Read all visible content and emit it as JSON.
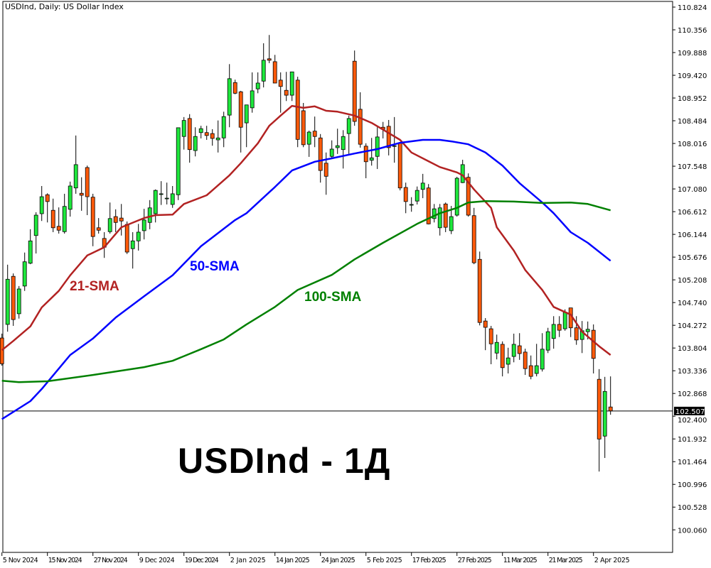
{
  "window": {
    "title": "USDInd, Daily:  US Dollar Index"
  },
  "overlay_text": "USDInd - 1Д",
  "chart_data": {
    "type": "candlestick",
    "title": "USDInd, Daily:  US Dollar Index",
    "ylim": [
      99.9,
      110.95
    ],
    "y_ticks": [
      "110.824",
      "110.356",
      "109.888",
      "109.420",
      "108.952",
      "108.484",
      "108.016",
      "107.548",
      "107.080",
      "106.612",
      "106.144",
      "105.676",
      "105.208",
      "104.740",
      "104.272",
      "103.804",
      "103.336",
      "102.868",
      "102.400",
      "101.932",
      "101.464",
      "100.996",
      "100.528",
      "100.060"
    ],
    "x_ticks": [
      {
        "bar": 0,
        "label": "5 Nov 2024"
      },
      {
        "bar": 8,
        "label": "15 Nov 2024"
      },
      {
        "bar": 16,
        "label": "27 Nov 2024"
      },
      {
        "bar": 24,
        "label": "9 Dec 2024"
      },
      {
        "bar": 32,
        "label": "19 Dec 2024"
      },
      {
        "bar": 40,
        "label": "2 Jan 2025"
      },
      {
        "bar": 48,
        "label": "14 Jan 2025"
      },
      {
        "bar": 56,
        "label": "24 Jan 2025"
      },
      {
        "bar": 64,
        "label": "5 Feb 2025"
      },
      {
        "bar": 72,
        "label": "17 Feb 2025"
      },
      {
        "bar": 80,
        "label": "27 Feb 2025"
      },
      {
        "bar": 88,
        "label": "11 Mar 2025"
      },
      {
        "bar": 96,
        "label": "21 Mar 2025"
      },
      {
        "bar": 104,
        "label": "2 Apr 2025"
      }
    ],
    "current_price": "102.507",
    "colors": {
      "bull": "#1ee83c",
      "bear": "#ff5a0a",
      "sma21": "#b22222",
      "sma50": "#0000ff",
      "sma100": "#008000"
    },
    "ohlc": [
      [
        104.01,
        104.1,
        103.44,
        103.48
      ],
      [
        104.29,
        105.52,
        104.14,
        105.22
      ],
      [
        105.28,
        105.34,
        104.26,
        104.39
      ],
      [
        104.51,
        105.08,
        104.41,
        105.02
      ],
      [
        105.08,
        105.77,
        104.98,
        105.58
      ],
      [
        105.55,
        106.25,
        105.53,
        106.01
      ],
      [
        106.12,
        106.6,
        105.75,
        106.54
      ],
      [
        106.57,
        107.14,
        106.42,
        106.92
      ],
      [
        106.96,
        106.99,
        106.39,
        106.82
      ],
      [
        106.64,
        106.88,
        106.19,
        106.28
      ],
      [
        106.31,
        106.7,
        106.16,
        106.23
      ],
      [
        106.2,
        106.98,
        106.16,
        106.72
      ],
      [
        106.66,
        107.23,
        106.51,
        107.14
      ],
      [
        107.1,
        108.18,
        106.98,
        107.58
      ],
      [
        106.99,
        107.32,
        106.63,
        106.95
      ],
      [
        107.52,
        107.56,
        106.54,
        106.92
      ],
      [
        106.91,
        106.98,
        105.9,
        106.1
      ],
      [
        106.28,
        106.48,
        106.16,
        106.23
      ],
      [
        106.06,
        106.19,
        105.66,
        105.88
      ],
      [
        106.2,
        106.8,
        106.16,
        106.47
      ],
      [
        106.51,
        106.66,
        106.19,
        106.39
      ],
      [
        106.48,
        106.77,
        106.12,
        106.42
      ],
      [
        106.35,
        106.41,
        105.74,
        105.78
      ],
      [
        105.85,
        106.19,
        105.44,
        106.01
      ],
      [
        106.01,
        106.36,
        105.81,
        106.19
      ],
      [
        106.22,
        106.67,
        106.04,
        106.44
      ],
      [
        106.39,
        106.85,
        106.25,
        106.69
      ],
      [
        106.57,
        107.07,
        106.39,
        107.05
      ],
      [
        106.98,
        107.24,
        106.75,
        106.98
      ],
      [
        106.89,
        107.21,
        106.76,
        106.89
      ],
      [
        106.76,
        107.14,
        106.69,
        106.98
      ],
      [
        106.96,
        108.34,
        106.85,
        108.34
      ],
      [
        108.16,
        108.56,
        107.89,
        108.49
      ],
      [
        108.53,
        108.62,
        107.62,
        107.89
      ],
      [
        107.87,
        108.35,
        107.75,
        108.16
      ],
      [
        108.24,
        108.38,
        108.12,
        108.32
      ],
      [
        108.24,
        108.38,
        108.09,
        108.18
      ],
      [
        108.22,
        108.31,
        107.97,
        108.12
      ],
      [
        108.09,
        108.49,
        107.83,
        108.13
      ],
      [
        108.13,
        108.67,
        107.94,
        108.57
      ],
      [
        108.6,
        109.65,
        108.35,
        109.35
      ],
      [
        109.27,
        109.33,
        109.03,
        109.05
      ],
      [
        109.08,
        109.1,
        107.83,
        108.35
      ],
      [
        108.44,
        108.81,
        107.94,
        108.81
      ],
      [
        108.75,
        109.48,
        108.65,
        109.1
      ],
      [
        109.14,
        109.48,
        109.05,
        109.26
      ],
      [
        109.3,
        110.08,
        109.17,
        109.73
      ],
      [
        109.76,
        110.25,
        109.67,
        109.73
      ],
      [
        109.7,
        109.84,
        109.26,
        109.26
      ],
      [
        109.32,
        109.48,
        108.65,
        109.19
      ],
      [
        109.11,
        109.49,
        108.89,
        109.01
      ],
      [
        109.01,
        109.49,
        108.89,
        109.49
      ],
      [
        109.32,
        109.39,
        107.94,
        108.1
      ],
      [
        108.69,
        108.85,
        107.94,
        107.99
      ],
      [
        108.0,
        108.28,
        107.74,
        108.25
      ],
      [
        108.27,
        108.57,
        107.94,
        108.16
      ],
      [
        108.13,
        108.21,
        107.21,
        107.46
      ],
      [
        107.61,
        107.83,
        106.96,
        107.34
      ],
      [
        107.75,
        108.08,
        107.71,
        107.9
      ],
      [
        107.93,
        108.32,
        107.8,
        107.97
      ],
      [
        107.89,
        108.29,
        107.5,
        108.16
      ],
      [
        108.22,
        108.59,
        107.8,
        108.53
      ],
      [
        109.71,
        109.93,
        108.38,
        108.47
      ],
      [
        108.72,
        109.07,
        107.93,
        108.0
      ],
      [
        107.96,
        108.02,
        107.3,
        107.64
      ],
      [
        107.67,
        108.13,
        107.56,
        107.72
      ],
      [
        107.75,
        108.35,
        107.49,
        108.15
      ],
      [
        108.35,
        108.46,
        108.12,
        108.31
      ],
      [
        108.37,
        108.5,
        107.77,
        107.93
      ],
      [
        107.97,
        108.56,
        107.62,
        107.97
      ],
      [
        108.03,
        108.03,
        107.05,
        107.1
      ],
      [
        107.11,
        107.21,
        106.58,
        106.82
      ],
      [
        106.76,
        106.91,
        106.61,
        106.76
      ],
      [
        106.83,
        107.13,
        106.76,
        107.05
      ],
      [
        107.07,
        107.39,
        106.89,
        107.2
      ],
      [
        107.1,
        107.18,
        106.35,
        106.36
      ],
      [
        106.47,
        106.77,
        106.39,
        106.67
      ],
      [
        106.28,
        106.77,
        106.12,
        106.69
      ],
      [
        106.77,
        106.8,
        106.19,
        106.29
      ],
      [
        106.22,
        106.73,
        106.15,
        106.51
      ],
      [
        106.54,
        107.33,
        106.51,
        107.3
      ],
      [
        107.21,
        107.68,
        107.2,
        107.58
      ],
      [
        107.32,
        107.4,
        106.51,
        106.54
      ],
      [
        106.53,
        106.69,
        105.53,
        105.56
      ],
      [
        105.63,
        105.79,
        104.27,
        104.33
      ],
      [
        104.36,
        104.42,
        103.76,
        104.23
      ],
      [
        104.2,
        104.26,
        103.47,
        103.89
      ],
      [
        103.7,
        104.08,
        103.57,
        103.92
      ],
      [
        103.88,
        103.94,
        103.22,
        103.4
      ],
      [
        103.47,
        103.81,
        103.28,
        103.6
      ],
      [
        103.63,
        104.1,
        103.51,
        103.88
      ],
      [
        103.85,
        104.11,
        103.56,
        103.69
      ],
      [
        103.72,
        103.79,
        103.25,
        103.38
      ],
      [
        103.44,
        103.65,
        103.16,
        103.22
      ],
      [
        103.28,
        103.89,
        103.22,
        103.44
      ],
      [
        103.37,
        104.11,
        103.32,
        103.78
      ],
      [
        103.76,
        104.22,
        103.7,
        104.14
      ],
      [
        104.0,
        104.46,
        103.79,
        104.29
      ],
      [
        104.29,
        104.46,
        104.03,
        104.17
      ],
      [
        104.2,
        104.6,
        104.16,
        104.54
      ],
      [
        104.63,
        104.63,
        104.03,
        104.22
      ],
      [
        104.22,
        104.46,
        103.87,
        103.97
      ],
      [
        103.98,
        104.36,
        103.7,
        104.16
      ],
      [
        104.14,
        104.35,
        103.98,
        104.19
      ],
      [
        104.17,
        104.29,
        103.28,
        103.59
      ],
      [
        103.16,
        103.37,
        101.26,
        101.93
      ],
      [
        101.99,
        103.21,
        101.54,
        102.91
      ],
      [
        102.59,
        103.22,
        102.43,
        102.51
      ]
    ],
    "series": [
      {
        "name": "21-SMA",
        "points": [
          [
            0,
            103.76
          ],
          [
            2,
            103.95
          ],
          [
            5,
            104.25
          ],
          [
            7,
            104.64
          ],
          [
            10,
            104.98
          ],
          [
            12,
            105.3
          ],
          [
            15,
            105.71
          ],
          [
            18,
            105.88
          ],
          [
            21,
            106.29
          ],
          [
            25,
            106.48
          ],
          [
            27,
            106.54
          ],
          [
            30,
            106.55
          ],
          [
            32,
            106.77
          ],
          [
            36,
            106.95
          ],
          [
            37,
            107.05
          ],
          [
            40,
            107.36
          ],
          [
            42,
            107.61
          ],
          [
            45,
            108.02
          ],
          [
            47,
            108.38
          ],
          [
            49,
            108.59
          ],
          [
            51,
            108.79
          ],
          [
            53,
            108.75
          ],
          [
            55,
            108.78
          ],
          [
            57,
            108.69
          ],
          [
            59,
            108.67
          ],
          [
            62,
            108.59
          ],
          [
            65,
            108.44
          ],
          [
            67,
            108.3
          ],
          [
            70,
            108.09
          ],
          [
            72,
            107.83
          ],
          [
            75,
            107.65
          ],
          [
            77,
            107.53
          ],
          [
            80,
            107.42
          ],
          [
            81,
            107.36
          ],
          [
            83,
            107.07
          ],
          [
            86,
            106.69
          ],
          [
            87,
            106.29
          ],
          [
            90,
            105.81
          ],
          [
            92,
            105.41
          ],
          [
            95,
            105.0
          ],
          [
            97,
            104.65
          ],
          [
            100,
            104.49
          ],
          [
            102,
            104.14
          ],
          [
            105,
            103.84
          ],
          [
            107,
            103.66
          ]
        ]
      },
      {
        "name": "50-SMA",
        "points": [
          [
            0,
            102.34
          ],
          [
            5,
            102.71
          ],
          [
            7,
            102.96
          ],
          [
            12,
            103.66
          ],
          [
            16,
            104.0
          ],
          [
            20,
            104.43
          ],
          [
            25,
            104.87
          ],
          [
            30,
            105.3
          ],
          [
            35,
            105.9
          ],
          [
            41,
            106.44
          ],
          [
            43,
            106.58
          ],
          [
            48,
            107.12
          ],
          [
            51,
            107.46
          ],
          [
            55,
            107.64
          ],
          [
            58,
            107.71
          ],
          [
            62,
            107.81
          ],
          [
            66,
            107.9
          ],
          [
            70,
            108.03
          ],
          [
            74,
            108.09
          ],
          [
            77,
            108.09
          ],
          [
            79,
            108.06
          ],
          [
            82,
            108.0
          ],
          [
            85,
            107.83
          ],
          [
            88,
            107.56
          ],
          [
            91,
            107.2
          ],
          [
            95,
            106.8
          ],
          [
            97,
            106.58
          ],
          [
            100,
            106.19
          ],
          [
            103,
            105.97
          ],
          [
            107,
            105.6
          ]
        ]
      },
      {
        "name": "100-SMA",
        "points": [
          [
            0,
            103.13
          ],
          [
            3,
            103.1
          ],
          [
            8,
            103.12
          ],
          [
            16,
            103.25
          ],
          [
            25,
            103.41
          ],
          [
            30,
            103.54
          ],
          [
            35,
            103.78
          ],
          [
            39,
            103.98
          ],
          [
            43,
            104.29
          ],
          [
            48,
            104.65
          ],
          [
            52,
            105.0
          ],
          [
            58,
            105.31
          ],
          [
            62,
            105.63
          ],
          [
            67,
            105.97
          ],
          [
            73,
            106.36
          ],
          [
            77,
            106.58
          ],
          [
            80,
            106.69
          ],
          [
            82,
            106.8
          ],
          [
            85,
            106.83
          ],
          [
            90,
            106.82
          ],
          [
            95,
            106.79
          ],
          [
            100,
            106.8
          ],
          [
            103,
            106.77
          ],
          [
            107,
            106.64
          ]
        ]
      }
    ]
  }
}
